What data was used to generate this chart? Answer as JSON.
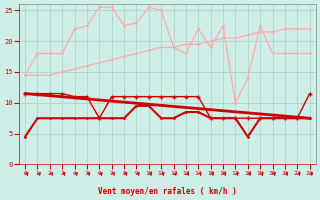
{
  "background_color": "#d0eee8",
  "grid_color": "#b0d8cc",
  "xlabel": "Vent moyen/en rafales ( km/h )",
  "xlabel_color": "#cc0000",
  "tick_color": "#cc0000",
  "ylim": [
    0,
    26
  ],
  "xlim": [
    -0.5,
    23.5
  ],
  "yticks": [
    0,
    5,
    10,
    15,
    20,
    25
  ],
  "xticks": [
    0,
    1,
    2,
    3,
    4,
    5,
    6,
    7,
    8,
    9,
    10,
    11,
    12,
    13,
    14,
    15,
    16,
    17,
    18,
    19,
    20,
    21,
    22,
    23
  ],
  "x": [
    0,
    1,
    2,
    3,
    4,
    5,
    6,
    7,
    8,
    9,
    10,
    11,
    12,
    13,
    14,
    15,
    16,
    17,
    18,
    19,
    20,
    21,
    22,
    23
  ],
  "line1_y": [
    14.5,
    18,
    18,
    18,
    22,
    22.5,
    25.5,
    25.5,
    22.5,
    23,
    25.5,
    25,
    19,
    18,
    22,
    19,
    22.5,
    10,
    14,
    22.5,
    18,
    18,
    18,
    18
  ],
  "line1_color": "#ffaaaa",
  "line2_y": [
    14.5,
    14.5,
    14.5,
    15,
    15.5,
    16,
    16.5,
    17,
    17.5,
    18,
    18.5,
    19,
    19,
    19.5,
    19.5,
    20,
    20.5,
    20.5,
    21,
    21.5,
    21.5,
    22,
    22,
    22
  ],
  "line2_color": "#ffaaaa",
  "line3_y": [
    11.5,
    11.5,
    11.5,
    11.5,
    11,
    11,
    7.5,
    11,
    11,
    11,
    11,
    11,
    11,
    11,
    11,
    7.5,
    7.5,
    7.5,
    7.5,
    7.5,
    7.5,
    7.5,
    7.5,
    11.5
  ],
  "line3_color": "#cc0000",
  "line4_y": [
    4.5,
    7.5,
    7.5,
    7.5,
    7.5,
    7.5,
    7.5,
    7.5,
    7.5,
    9.5,
    9.5,
    7.5,
    7.5,
    8.5,
    8.5,
    7.5,
    7.5,
    7.5,
    4.5,
    7.5,
    7.5,
    7.5,
    7.5,
    7.5
  ],
  "line4_color": "#cc0000",
  "trend_x": [
    0,
    23
  ],
  "trend_y": [
    11.5,
    7.5
  ],
  "trend_color": "#cc0000",
  "arrow_color": "#cc0000"
}
